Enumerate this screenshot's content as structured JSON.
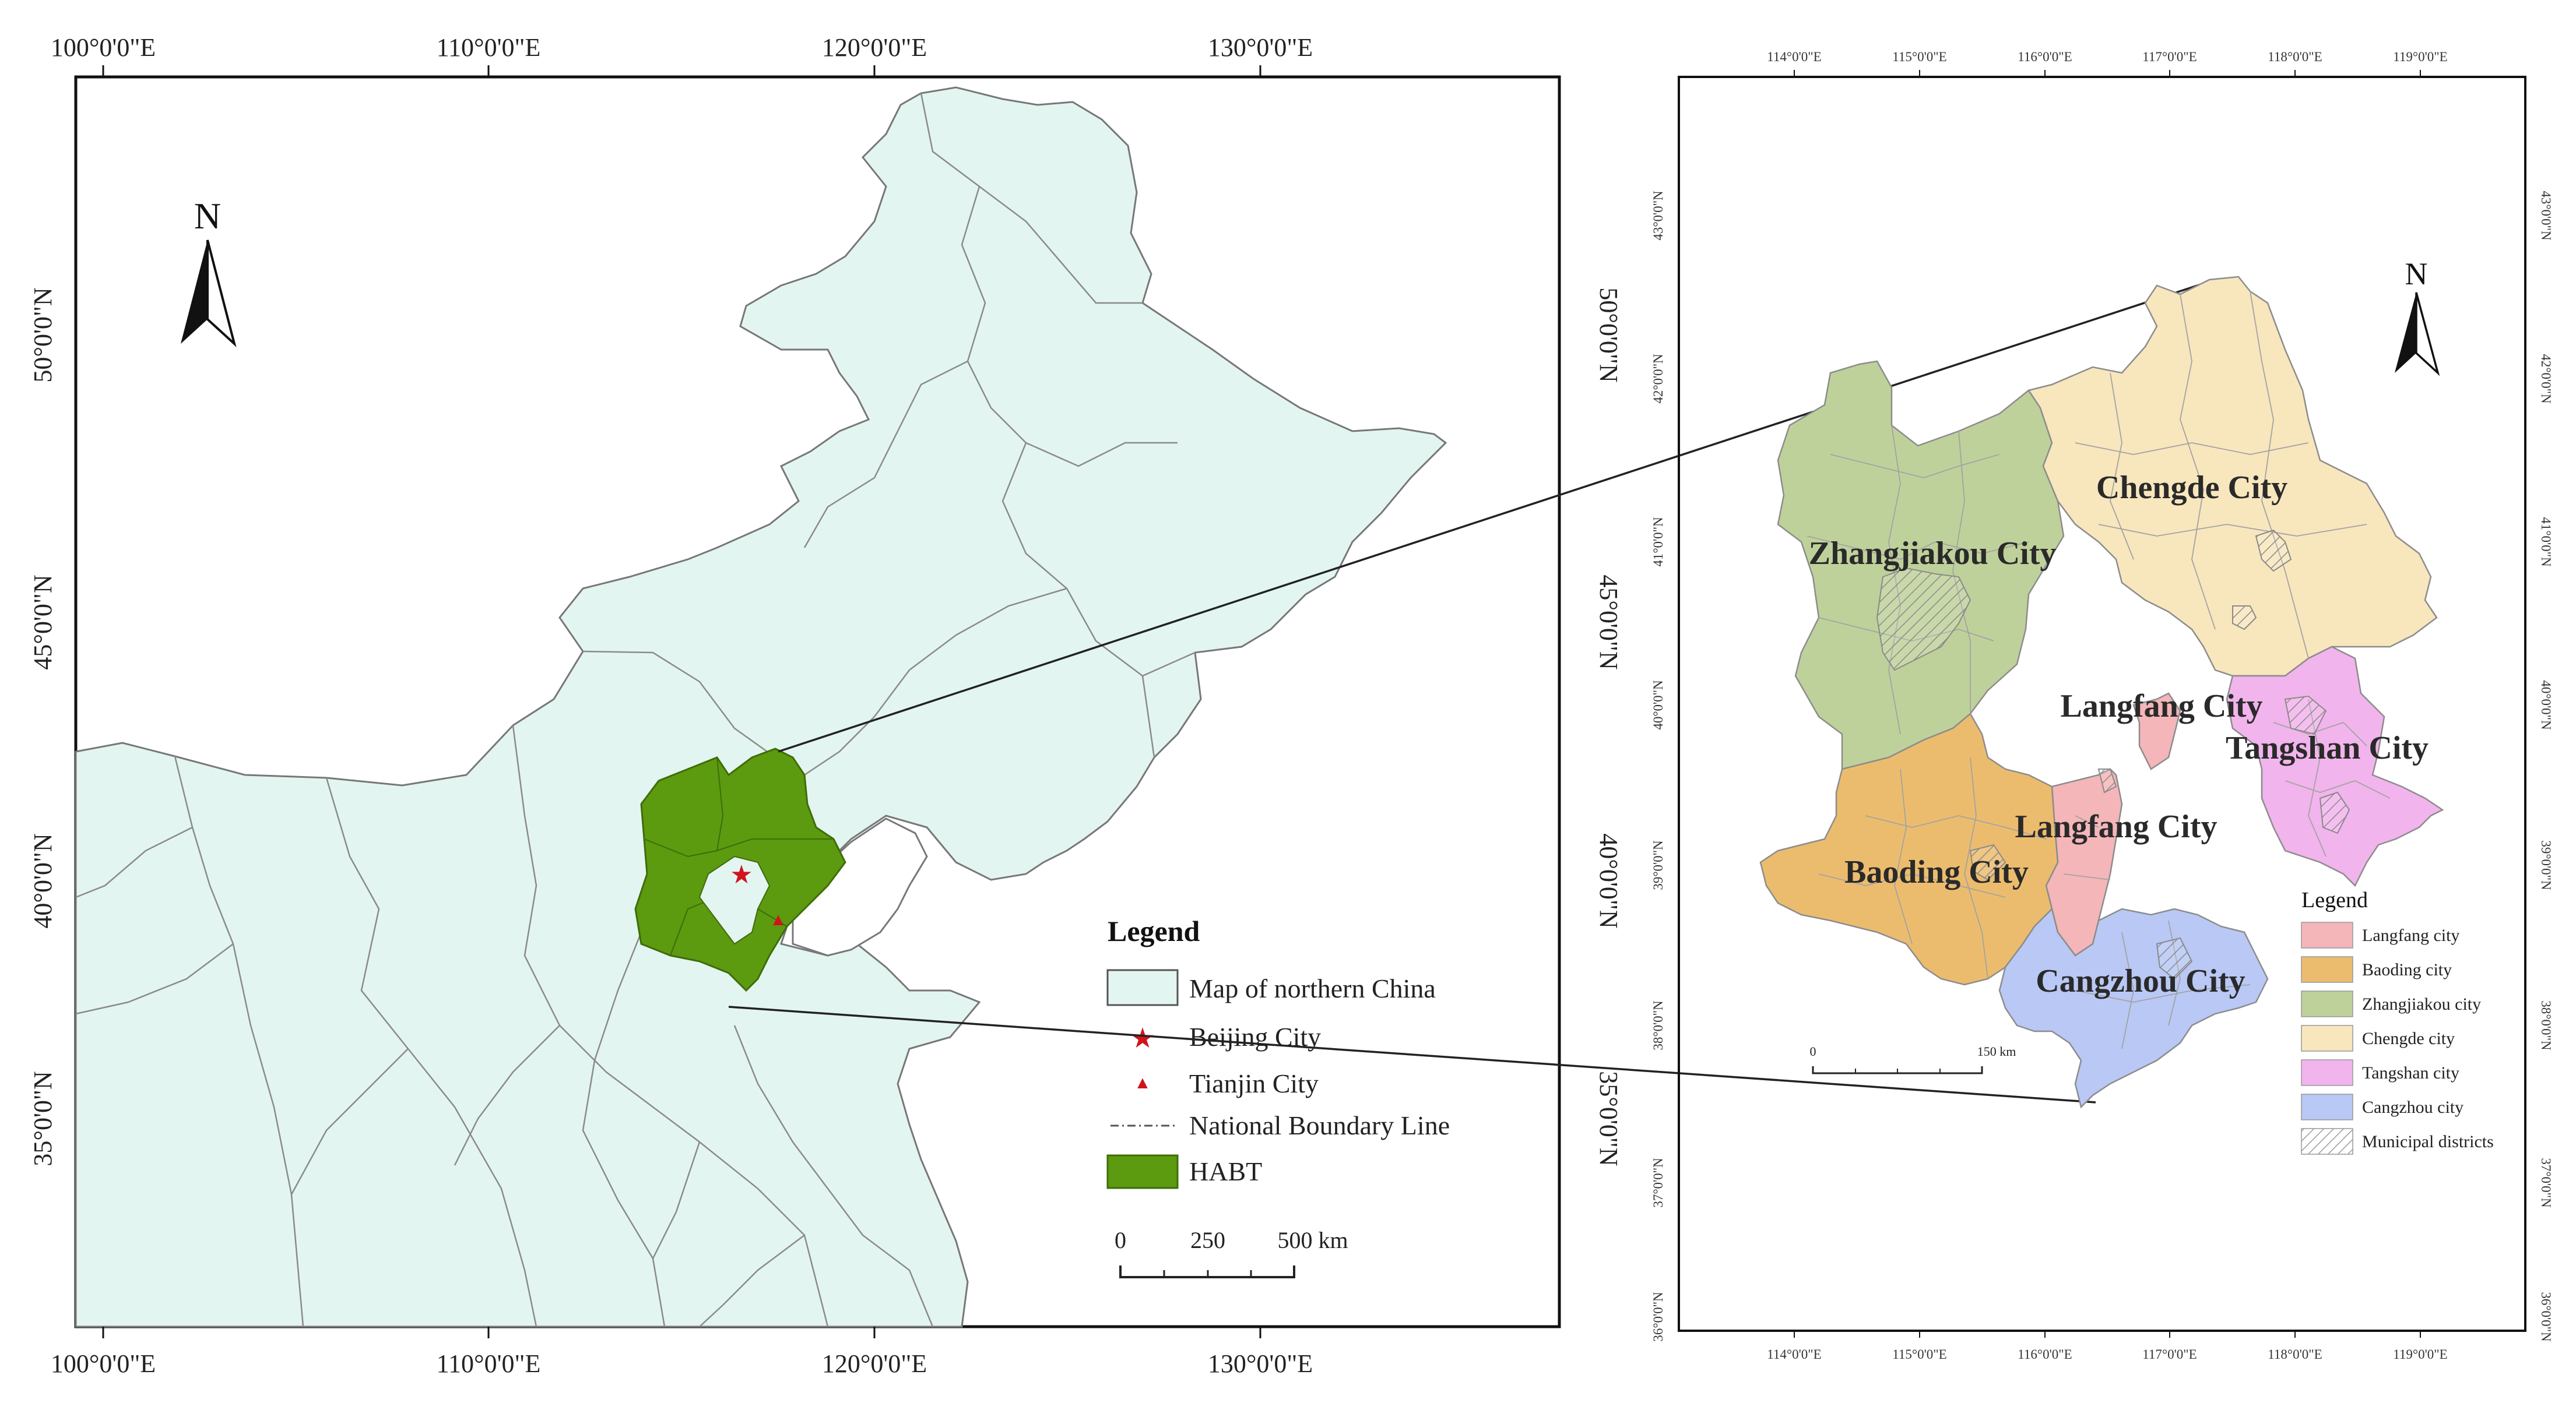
{
  "left_map": {
    "top_lon_labels": [
      "100°0'0\"E",
      "110°0'0\"E",
      "120°0'0\"E",
      "130°0'0\"E"
    ],
    "bottom_lon_labels": [
      "100°0'0\"E",
      "110°0'0\"E",
      "120°0'0\"E",
      "130°0'0\"E"
    ],
    "left_lat_labels": [
      "50°0'0\"N",
      "45°0'0\"N",
      "40°0'0\"N",
      "35°0'0\"N"
    ],
    "right_lat_labels": [
      "50°0'0\"N",
      "45°0'0\"N",
      "40°0'0\"N",
      "35°0'0\"N"
    ],
    "north_label": "N",
    "legend": {
      "title": "Legend",
      "items": [
        {
          "label": "Map of northern China",
          "color": "#e3f5f1"
        },
        {
          "label": "Beijing City",
          "color": "#d0141c"
        },
        {
          "label": "Tianjin City",
          "color": "#d0141c"
        },
        {
          "label": "National Boundary Line",
          "color": "#555555"
        },
        {
          "label": "HABT",
          "color": "#5c9a10"
        }
      ]
    },
    "scale": {
      "labels": [
        "0",
        "250",
        "500 km"
      ]
    }
  },
  "right_map": {
    "top_lon_labels": [
      "114°0'0\"E",
      "115°0'0\"E",
      "116°0'0\"E",
      "117°0'0\"E",
      "118°0'0\"E",
      "119°0'0\"E"
    ],
    "bottom_lon_labels": [
      "114°0'0\"E",
      "115°0'0\"E",
      "116°0'0\"E",
      "117°0'0\"E",
      "118°0'0\"E",
      "119°0'0\"E"
    ],
    "left_lat_labels": [
      "43°0'0\"N",
      "42°0'0\"N",
      "41°0'0\"N",
      "40°0'0\"N",
      "39°0'0\"N",
      "38°0'0\"N",
      "37°0'0\"N",
      "36°0'0\"N"
    ],
    "right_lat_labels": [
      "43°0'0\"N",
      "42°0'0\"N",
      "41°0'0\"N",
      "40°0'0\"N",
      "39°0'0\"N",
      "38°0'0\"N",
      "37°0'0\"N",
      "36°0'0\"N"
    ],
    "north_label": "N",
    "city_labels": {
      "chengde": "Chengde City",
      "zhangjiakou": "Zhangjiakou City",
      "langfang_north": "Langfang City",
      "tangshan": "Tangshan City",
      "langfang_south": "Langfang City",
      "baoding": "Baoding City",
      "cangzhou": "Cangzhou City"
    },
    "legend": {
      "title": "Legend",
      "items": [
        {
          "label": "Langfang city",
          "color": "#f4b6b9"
        },
        {
          "label": "Baoding city",
          "color": "#ecbc6e"
        },
        {
          "label": "Zhangjiakou city",
          "color": "#bfd19a"
        },
        {
          "label": "Chengde city",
          "color": "#f8e6bd"
        },
        {
          "label": "Tangshan city",
          "color": "#f2b4ec"
        },
        {
          "label": "Cangzhou city",
          "color": "#b9c8f5"
        },
        {
          "label": "Municipal districts",
          "color": "hatch"
        }
      ]
    },
    "scale": {
      "labels": [
        "0",
        "150 km"
      ]
    }
  }
}
